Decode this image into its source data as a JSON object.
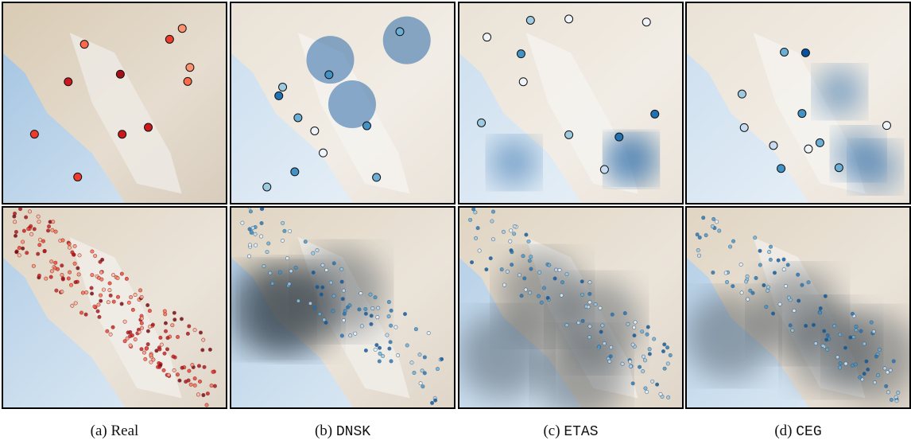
{
  "captions": [
    {
      "label": "(a)",
      "name": "Real"
    },
    {
      "label": "(b)",
      "name": "DNSK"
    },
    {
      "label": "(c)",
      "name": "ETAS"
    },
    {
      "label": "(d)",
      "name": "CEG"
    }
  ]
}
